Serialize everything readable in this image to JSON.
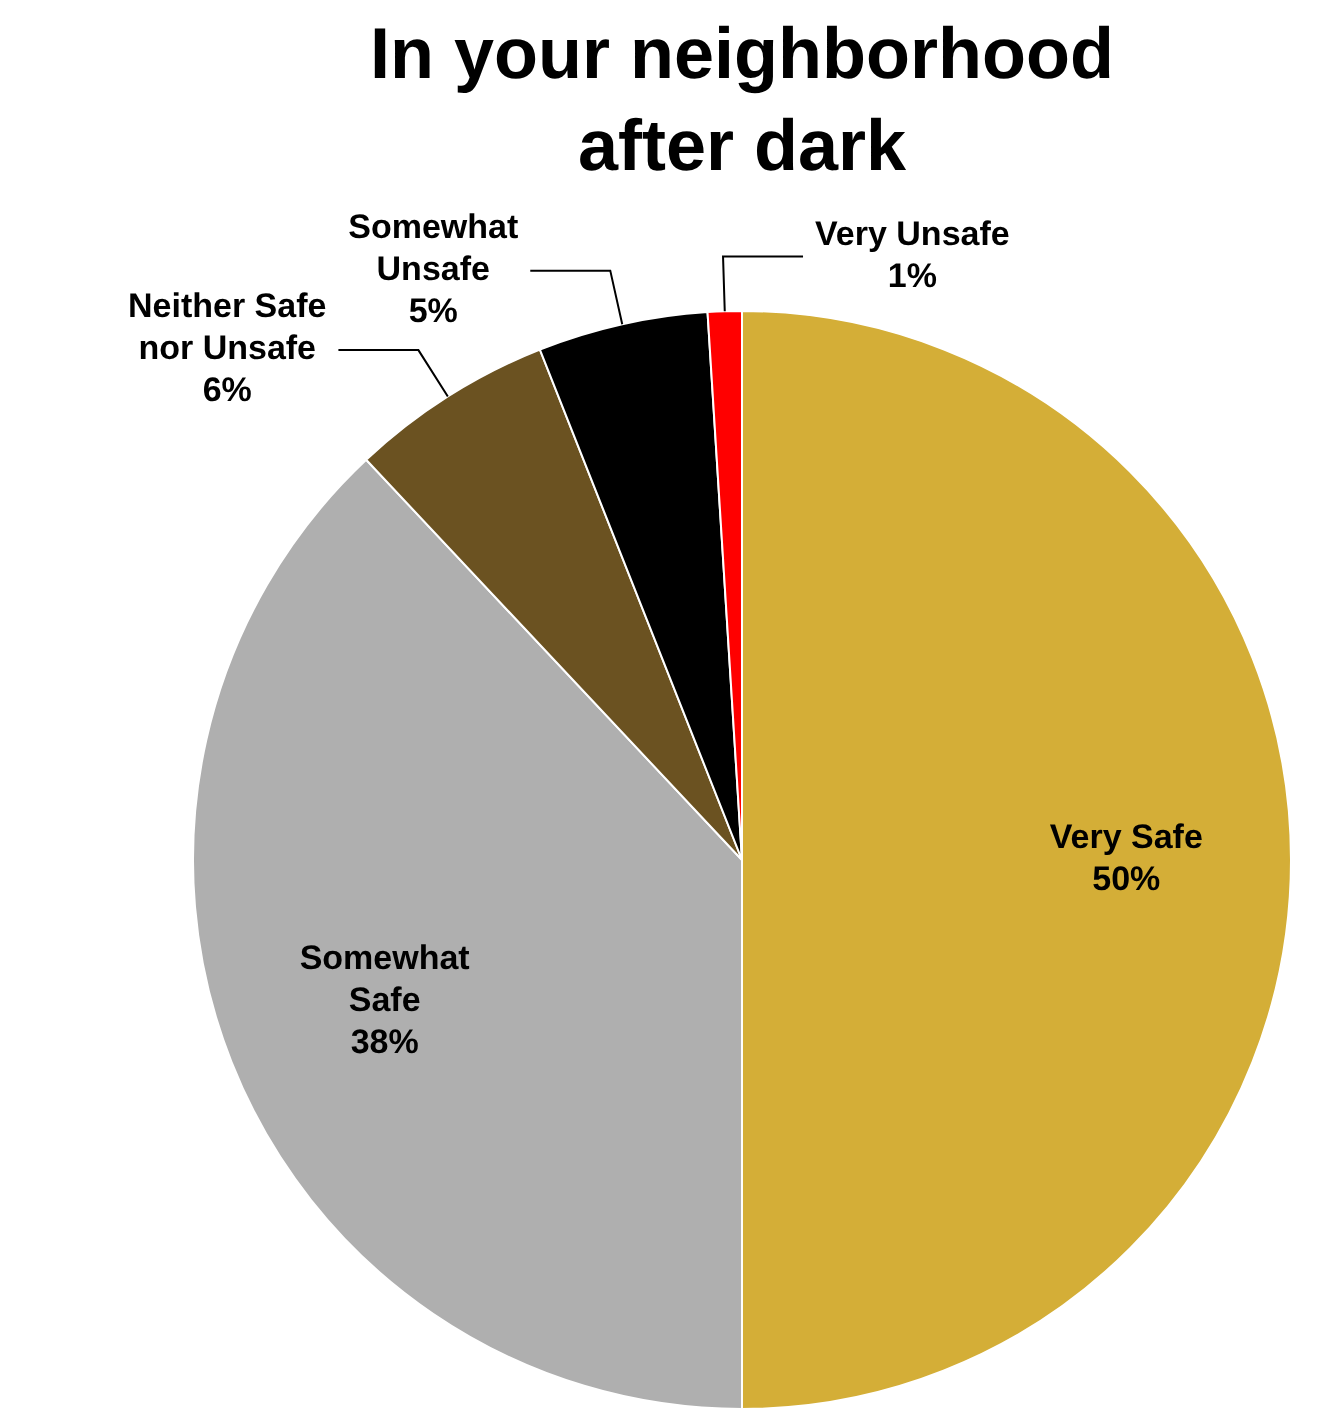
{
  "chart_data": {
    "type": "pie",
    "title": "In your neighborhood after dark",
    "categories": [
      "Very Safe",
      "Somewhat Safe",
      "Neither Safe nor Unsafe",
      "Somewhat Unsafe",
      "Very Unsafe"
    ],
    "values": [
      50,
      38,
      6,
      5,
      1
    ],
    "colors": [
      "#d4ae37",
      "#afafaf",
      "#6b5221",
      "#000000",
      "#ff0000"
    ],
    "value_labels": [
      "50%",
      "38%",
      "6%",
      "5%",
      "1%"
    ],
    "legend": false
  }
}
